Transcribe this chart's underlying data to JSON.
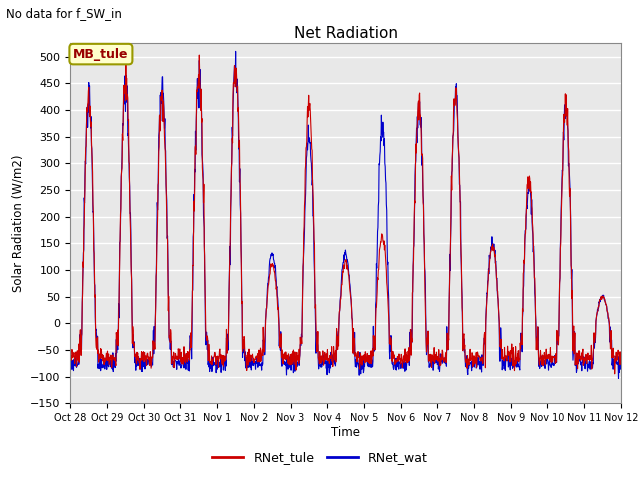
{
  "title": "Net Radiation",
  "subtitle": "No data for f_SW_in",
  "ylabel": "Solar Radiation (W/m2)",
  "xlabel": "Time",
  "ylim": [
    -150,
    525
  ],
  "yticks": [
    -150,
    -100,
    -50,
    0,
    50,
    100,
    150,
    200,
    250,
    300,
    350,
    400,
    450,
    500
  ],
  "xtick_labels": [
    "Oct 28",
    "Oct 29",
    "Oct 30",
    "Oct 31",
    "Nov 1",
    "Nov 2",
    "Nov 3",
    "Nov 4",
    "Nov 5",
    "Nov 6",
    "Nov 7",
    "Nov 8",
    "Nov 9",
    "Nov 10",
    "Nov 11",
    "Nov 12"
  ],
  "legend_label1": "RNet_tule",
  "legend_label2": "RNet_wat",
  "color1": "#CC0000",
  "color2": "#0000CC",
  "annotation_box": "MB_tule",
  "annotation_box_facecolor": "#FFFFCC",
  "annotation_box_edgecolor": "#999900",
  "fig_facecolor": "#FFFFFF",
  "plot_facecolor": "#E8E8E8",
  "grid_color": "#FFFFFF",
  "linewidth": 0.8,
  "n_days": 15,
  "peaks_tule": [
    420,
    450,
    430,
    465,
    480,
    110,
    410,
    115,
    160,
    410,
    425,
    145,
    270,
    405,
    50
  ],
  "peaks_wat": [
    415,
    450,
    440,
    460,
    480,
    130,
    350,
    130,
    370,
    405,
    425,
    150,
    250,
    410,
    50
  ],
  "night_val_tule": -65,
  "night_val_wat": -75,
  "day_hours": 9
}
